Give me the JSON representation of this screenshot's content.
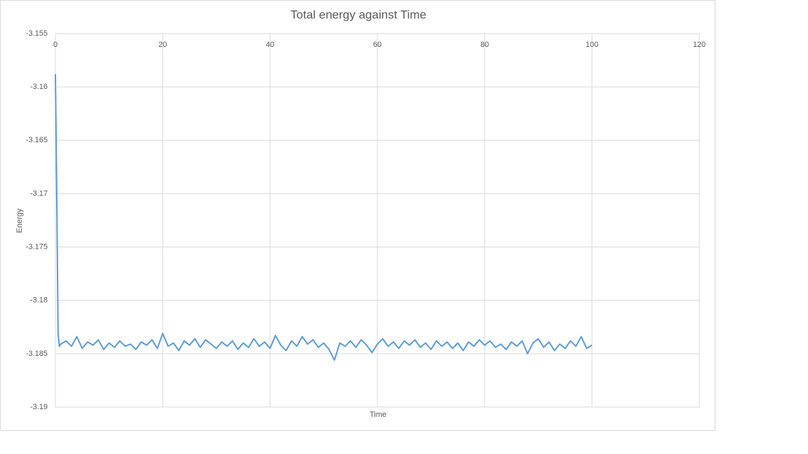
{
  "chart_data": {
    "type": "line",
    "title": "Total energy against Time",
    "x_label": "Time",
    "y_label": "Energy",
    "xlim": [
      0,
      120
    ],
    "xticks": [
      0,
      20,
      40,
      60,
      80,
      100,
      120
    ],
    "ylim": [
      -3.19,
      -3.155
    ],
    "yticks": [
      -3.155,
      -3.16,
      -3.165,
      -3.17,
      -3.175,
      -3.18,
      -3.185,
      -3.19
    ],
    "grid": true,
    "x_axis_position": "top",
    "x": [
      0,
      0.25,
      0.5,
      0.75,
      1,
      2,
      3,
      4,
      5,
      6,
      7,
      8,
      9,
      10,
      11,
      12,
      13,
      14,
      15,
      16,
      17,
      18,
      19,
      20,
      21,
      22,
      23,
      24,
      25,
      26,
      27,
      28,
      29,
      30,
      31,
      32,
      33,
      34,
      35,
      36,
      37,
      38,
      39,
      40,
      41,
      42,
      43,
      44,
      45,
      46,
      47,
      48,
      49,
      50,
      51,
      52,
      53,
      54,
      55,
      56,
      57,
      58,
      59,
      60,
      61,
      62,
      63,
      64,
      65,
      66,
      67,
      68,
      69,
      70,
      71,
      72,
      73,
      74,
      75,
      76,
      77,
      78,
      79,
      80,
      81,
      82,
      83,
      84,
      85,
      86,
      87,
      88,
      89,
      90,
      91,
      92,
      93,
      94,
      95,
      96,
      97,
      98,
      99,
      100
    ],
    "series": [
      {
        "name": "Energy",
        "color": "#5b9bd5",
        "values": [
          -3.1588,
          -3.17,
          -3.1832,
          -3.1843,
          -3.1841,
          -3.1838,
          -3.1843,
          -3.1834,
          -3.1845,
          -3.1839,
          -3.1842,
          -3.1837,
          -3.1846,
          -3.184,
          -3.1844,
          -3.1838,
          -3.1843,
          -3.1841,
          -3.1846,
          -3.1839,
          -3.1842,
          -3.1837,
          -3.1845,
          -3.1831,
          -3.1843,
          -3.184,
          -3.1847,
          -3.1838,
          -3.1842,
          -3.1836,
          -3.1844,
          -3.1837,
          -3.1841,
          -3.1845,
          -3.1839,
          -3.1843,
          -3.1838,
          -3.1846,
          -3.184,
          -3.1844,
          -3.1836,
          -3.1843,
          -3.1839,
          -3.1845,
          -3.1833,
          -3.1842,
          -3.1847,
          -3.1838,
          -3.1843,
          -3.1834,
          -3.1841,
          -3.1837,
          -3.1844,
          -3.184,
          -3.1846,
          -3.1856,
          -3.184,
          -3.1843,
          -3.1838,
          -3.1844,
          -3.1837,
          -3.1842,
          -3.1849,
          -3.1841,
          -3.1836,
          -3.1843,
          -3.1839,
          -3.1845,
          -3.1838,
          -3.1842,
          -3.1837,
          -3.1844,
          -3.184,
          -3.1846,
          -3.1838,
          -3.1843,
          -3.1839,
          -3.1845,
          -3.184,
          -3.1847,
          -3.1839,
          -3.1843,
          -3.1837,
          -3.1842,
          -3.1838,
          -3.1844,
          -3.1841,
          -3.1846,
          -3.1839,
          -3.1843,
          -3.1838,
          -3.185,
          -3.184,
          -3.1836,
          -3.1844,
          -3.1839,
          -3.1847,
          -3.1841,
          -3.1845,
          -3.1838,
          -3.1843,
          -3.1834,
          -3.1845,
          -3.1842
        ]
      }
    ]
  }
}
